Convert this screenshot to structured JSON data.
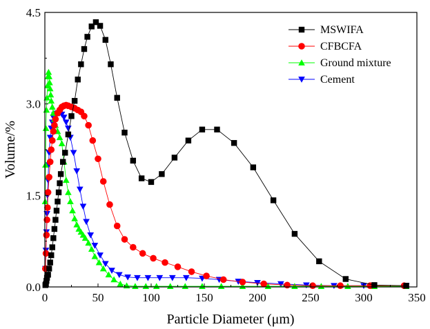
{
  "chart_data": {
    "type": "line",
    "title": "",
    "xlabel": "Particle Diameter (μm)",
    "ylabel": "Volume/%",
    "xlim": [
      0,
      350
    ],
    "ylim": [
      0,
      4.5
    ],
    "xticks": [
      "0",
      "50",
      "100",
      "150",
      "200",
      "250",
      "300",
      "350"
    ],
    "yticks": [
      "0.0",
      "1.5",
      "3.0",
      "4.5"
    ],
    "legend_position": "top-right",
    "series": [
      {
        "name": "MSWIFA",
        "color": "#000000",
        "marker": "square",
        "x": [
          0.5,
          1,
          1.5,
          2,
          3,
          4,
          5,
          6,
          7,
          8,
          9,
          10,
          11,
          12,
          13,
          14,
          15,
          17,
          19,
          22,
          25,
          28,
          31,
          34,
          37,
          40,
          44,
          48,
          52,
          57,
          62,
          68,
          75,
          83,
          91,
          100,
          110,
          122,
          135,
          148,
          162,
          178,
          196,
          215,
          235,
          258,
          283,
          310,
          340
        ],
        "values": [
          0.03,
          0.05,
          0.1,
          0.15,
          0.2,
          0.3,
          0.4,
          0.52,
          0.65,
          0.8,
          0.95,
          1.1,
          1.25,
          1.4,
          1.55,
          1.7,
          1.85,
          2.05,
          2.2,
          2.5,
          2.8,
          3.05,
          3.4,
          3.65,
          3.9,
          4.1,
          4.27,
          4.34,
          4.28,
          4.05,
          3.65,
          3.1,
          2.53,
          2.07,
          1.78,
          1.72,
          1.85,
          2.12,
          2.4,
          2.58,
          2.58,
          2.36,
          1.96,
          1.42,
          0.87,
          0.42,
          0.13,
          0.03,
          0.02
        ]
      },
      {
        "name": "CFBCFA",
        "color": "#ff0000",
        "marker": "circle",
        "x": [
          0.5,
          1,
          1.5,
          2,
          2.5,
          3,
          4,
          5,
          6,
          7,
          8,
          9,
          10,
          12,
          14,
          16,
          18,
          20,
          22,
          25,
          28,
          31,
          34,
          37,
          41,
          45,
          50,
          55,
          61,
          68,
          75,
          83,
          92,
          102,
          113,
          125,
          138,
          152,
          168,
          186,
          206,
          228,
          252,
          278,
          306,
          338
        ],
        "values": [
          0.3,
          0.55,
          0.85,
          1.1,
          1.3,
          1.55,
          1.8,
          2.05,
          2.25,
          2.4,
          2.55,
          2.65,
          2.75,
          2.85,
          2.9,
          2.95,
          2.97,
          2.98,
          2.97,
          2.95,
          2.93,
          2.9,
          2.87,
          2.8,
          2.65,
          2.4,
          2.1,
          1.73,
          1.35,
          1.0,
          0.78,
          0.65,
          0.55,
          0.47,
          0.4,
          0.33,
          0.25,
          0.18,
          0.12,
          0.08,
          0.05,
          0.03,
          0.02,
          0.02,
          0.02,
          0.02
        ]
      },
      {
        "name": "Ground mixture",
        "color": "#00ff00",
        "marker": "triangle-up",
        "x": [
          0.3,
          0.6,
          1,
          1.5,
          2,
          2.5,
          3,
          3.5,
          4,
          4.5,
          5,
          5.5,
          6,
          7,
          8,
          9,
          10,
          12,
          14,
          16,
          18,
          20,
          22,
          24,
          26,
          28,
          30,
          32,
          34,
          36,
          38,
          41,
          44,
          47,
          51,
          55,
          60,
          65,
          71,
          77,
          85,
          95,
          105,
          118,
          132,
          148,
          166,
          186,
          210,
          235,
          260,
          285,
          310,
          340
        ],
        "values": [
          1.4,
          2.0,
          2.6,
          2.9,
          3.1,
          3.3,
          3.45,
          3.52,
          3.45,
          3.35,
          3.25,
          3.15,
          3.05,
          2.95,
          2.85,
          2.75,
          2.65,
          2.55,
          2.45,
          2.35,
          2.05,
          1.75,
          1.55,
          1.4,
          1.25,
          1.12,
          1.02,
          0.95,
          0.9,
          0.85,
          0.8,
          0.72,
          0.62,
          0.5,
          0.4,
          0.3,
          0.2,
          0.12,
          0.05,
          0.02,
          0.01,
          0.01,
          0.01,
          0.01,
          0.01,
          0.01,
          0.01,
          0.01,
          0.01,
          0.01,
          0.01,
          0.01,
          0.01,
          0.01
        ]
      },
      {
        "name": "Cement",
        "color": "#0000ff",
        "marker": "triangle-down",
        "x": [
          0.5,
          1,
          1.5,
          2,
          2.5,
          3,
          3.5,
          4,
          5,
          6,
          7,
          8,
          9,
          10,
          12,
          14,
          16,
          18,
          20,
          22,
          24,
          27,
          30,
          33,
          36,
          39,
          43,
          47,
          52,
          57,
          63,
          70,
          78,
          87,
          97,
          108,
          120,
          133,
          148,
          164,
          182,
          200,
          222,
          246,
          272,
          300,
          340
        ],
        "values": [
          0.3,
          0.6,
          0.9,
          1.2,
          1.5,
          1.75,
          2.0,
          2.2,
          2.45,
          2.6,
          2.7,
          2.78,
          2.82,
          2.84,
          2.85,
          2.85,
          2.83,
          2.78,
          2.7,
          2.6,
          2.45,
          2.2,
          1.9,
          1.6,
          1.32,
          1.07,
          0.85,
          0.68,
          0.52,
          0.38,
          0.27,
          0.2,
          0.16,
          0.15,
          0.15,
          0.15,
          0.15,
          0.15,
          0.14,
          0.12,
          0.09,
          0.07,
          0.05,
          0.03,
          0.02,
          0.02,
          0.02
        ]
      }
    ]
  }
}
